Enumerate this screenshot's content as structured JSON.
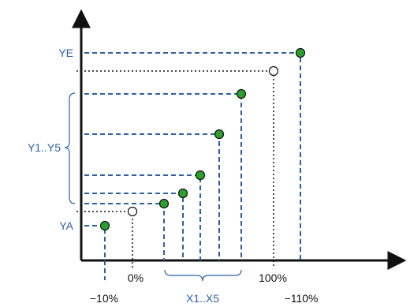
{
  "labels": {
    "y_end": "YE",
    "y_range": "Y1..Y5",
    "y_start": "YA",
    "x_zero": "0%",
    "x_hundred": "100%",
    "x_minus_ten": "−10%",
    "x_range": "X1..X5",
    "x_minus_hundred_ten": "−110%"
  },
  "colors": {
    "axis": "#111111",
    "guide_blue": "#2e5fa6",
    "point_green": "#2ca02c",
    "label_blue": "#2e5fa6"
  }
}
